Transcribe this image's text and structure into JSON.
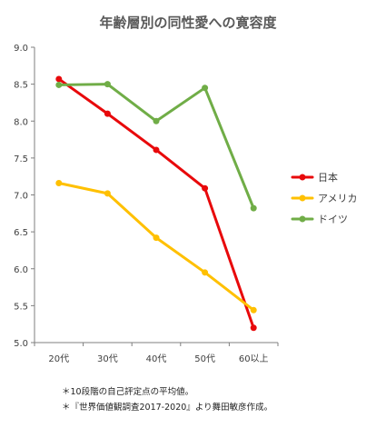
{
  "chart_data": {
    "type": "line",
    "title": "年齢層別の同性愛への寛容度",
    "xlabel": "",
    "ylabel": "",
    "categories": [
      "20代",
      "30代",
      "40代",
      "50代",
      "60以上"
    ],
    "ylim": [
      5.0,
      9.0
    ],
    "yticks": [
      "5.0",
      "5.5",
      "6.0",
      "6.5",
      "7.0",
      "7.5",
      "8.0",
      "8.5",
      "9.0"
    ],
    "grid": false,
    "legend_position": "right",
    "series": [
      {
        "name": "日本",
        "color": "#e8090b",
        "values": [
          8.57,
          8.1,
          7.61,
          7.09,
          5.2
        ]
      },
      {
        "name": "アメリカ",
        "color": "#ffc000",
        "values": [
          7.16,
          7.02,
          6.42,
          5.95,
          5.44
        ]
      },
      {
        "name": "ドイツ",
        "color": "#70ad47",
        "values": [
          8.49,
          8.5,
          8.0,
          8.45,
          6.82
        ]
      }
    ]
  },
  "notes": {
    "line1": "＊10段階の自己評定点の平均値。",
    "line2": "＊『世界価値観調査2017-2020』より舞田敏彦作成。"
  }
}
